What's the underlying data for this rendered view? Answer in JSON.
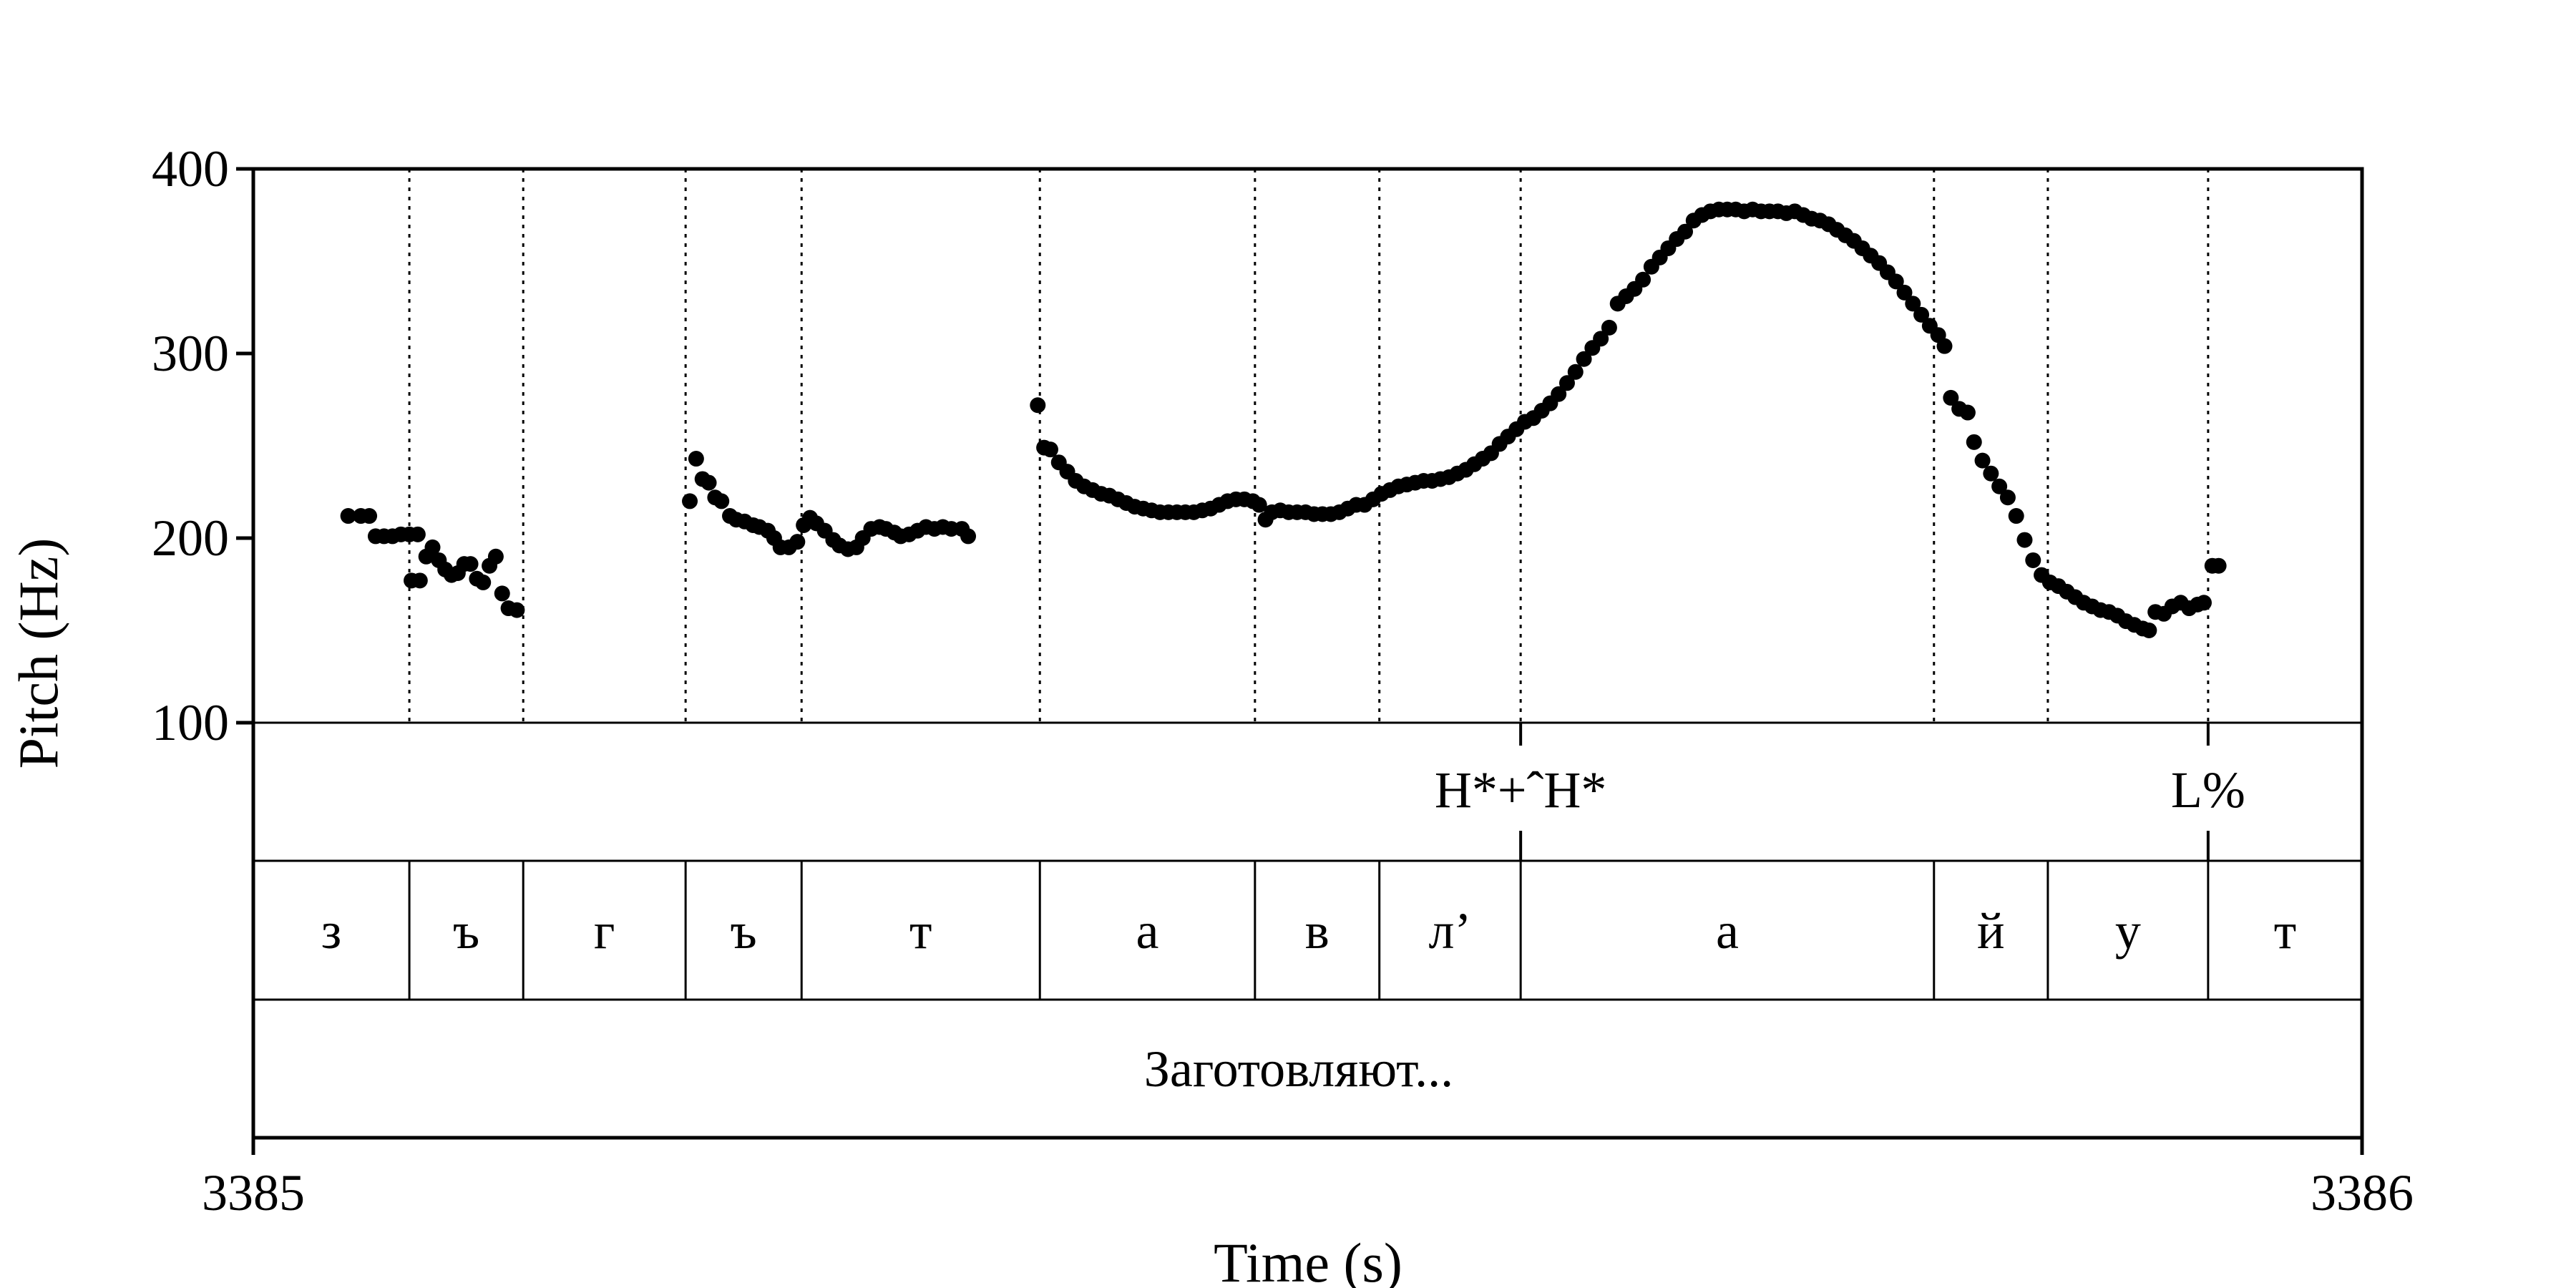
{
  "colors": {
    "points": "#000000",
    "lines": "#000000",
    "background": "#ffffff"
  },
  "chart_data": {
    "type": "scatter",
    "title": "",
    "xlabel": "Time (s)",
    "ylabel": "Pitch (Hz)",
    "xlim": [
      3385,
      3386
    ],
    "ylim": [
      100,
      400
    ],
    "x_tick_labels": [
      "3385",
      "3386"
    ],
    "y_tick_labels": [
      "100",
      "200",
      "300",
      "400"
    ],
    "grid": false,
    "legend": "none",
    "segment_boundaries": [
      3385.074,
      3385.128,
      3385.205,
      3385.26,
      3385.373,
      3385.475,
      3385.534,
      3385.601,
      3385.797,
      3385.851,
      3385.927
    ],
    "tones": [
      {
        "time": 3385.601,
        "label": "H*+ˆH*"
      },
      {
        "time": 3385.927,
        "label": "L%"
      }
    ],
    "segments": [
      "з",
      "ъ",
      "г",
      "ъ",
      "т",
      "а",
      "в",
      "л’",
      "а",
      "й",
      "у",
      "т"
    ],
    "word": "Заготовляют...",
    "pitch_series": [
      [
        3385.045,
        212
      ],
      [
        3385.051,
        212
      ],
      [
        3385.055,
        212
      ],
      [
        3385.058,
        201
      ],
      [
        3385.062,
        201
      ],
      [
        3385.066,
        201
      ],
      [
        3385.07,
        202
      ],
      [
        3385.074,
        202
      ],
      [
        3385.078,
        202
      ],
      [
        3385.075,
        177
      ],
      [
        3385.079,
        177
      ],
      [
        3385.082,
        190
      ],
      [
        3385.085,
        195
      ],
      [
        3385.088,
        188
      ],
      [
        3385.091,
        183
      ],
      [
        3385.094,
        180
      ],
      [
        3385.097,
        181
      ],
      [
        3385.1,
        186
      ],
      [
        3385.103,
        186
      ],
      [
        3385.106,
        178
      ],
      [
        3385.109,
        176
      ],
      [
        3385.112,
        185
      ],
      [
        3385.115,
        190
      ],
      [
        3385.118,
        170
      ],
      [
        3385.121,
        162
      ],
      [
        3385.125,
        161
      ],
      [
        3385.207,
        220
      ],
      [
        3385.21,
        243
      ],
      [
        3385.213,
        232
      ],
      [
        3385.216,
        230
      ],
      [
        3385.219,
        222
      ],
      [
        3385.222,
        220
      ],
      [
        3385.226,
        212
      ],
      [
        3385.229,
        210
      ],
      [
        3385.233,
        209
      ],
      [
        3385.237,
        207
      ],
      [
        3385.24,
        206
      ],
      [
        3385.244,
        204
      ],
      [
        3385.247,
        200
      ],
      [
        3385.25,
        195
      ],
      [
        3385.254,
        195
      ],
      [
        3385.258,
        198
      ],
      [
        3385.261,
        207
      ],
      [
        3385.264,
        211
      ],
      [
        3385.267,
        208
      ],
      [
        3385.271,
        204
      ],
      [
        3385.275,
        199
      ],
      [
        3385.278,
        196
      ],
      [
        3385.282,
        194
      ],
      [
        3385.286,
        195
      ],
      [
        3385.289,
        200
      ],
      [
        3385.293,
        205
      ],
      [
        3385.297,
        206
      ],
      [
        3385.3,
        205
      ],
      [
        3385.304,
        203
      ],
      [
        3385.307,
        201
      ],
      [
        3385.311,
        202
      ],
      [
        3385.315,
        204
      ],
      [
        3385.319,
        206
      ],
      [
        3385.323,
        205
      ],
      [
        3385.327,
        206
      ],
      [
        3385.331,
        205
      ],
      [
        3385.336,
        205
      ],
      [
        3385.339,
        201
      ],
      [
        3385.372,
        272
      ],
      [
        3385.375,
        249
      ],
      [
        3385.378,
        248
      ],
      [
        3385.382,
        241
      ],
      [
        3385.386,
        236
      ],
      [
        3385.39,
        231
      ],
      [
        3385.394,
        228
      ],
      [
        3385.398,
        226
      ],
      [
        3385.402,
        224
      ],
      [
        3385.406,
        223
      ],
      [
        3385.41,
        221
      ],
      [
        3385.414,
        219
      ],
      [
        3385.418,
        217
      ],
      [
        3385.422,
        216
      ],
      [
        3385.426,
        215
      ],
      [
        3385.43,
        214
      ],
      [
        3385.434,
        214
      ],
      [
        3385.438,
        214
      ],
      [
        3385.442,
        214
      ],
      [
        3385.446,
        214
      ],
      [
        3385.45,
        215
      ],
      [
        3385.454,
        216
      ],
      [
        3385.458,
        218
      ],
      [
        3385.462,
        220
      ],
      [
        3385.466,
        221
      ],
      [
        3385.47,
        221
      ],
      [
        3385.474,
        220
      ],
      [
        3385.477,
        218
      ],
      [
        3385.48,
        210
      ],
      [
        3385.483,
        214
      ],
      [
        3385.487,
        215
      ],
      [
        3385.491,
        214
      ],
      [
        3385.495,
        214
      ],
      [
        3385.499,
        214
      ],
      [
        3385.503,
        213
      ],
      [
        3385.507,
        213
      ],
      [
        3385.511,
        213
      ],
      [
        3385.515,
        214
      ],
      [
        3385.519,
        216
      ],
      [
        3385.523,
        218
      ],
      [
        3385.527,
        218
      ],
      [
        3385.531,
        221
      ],
      [
        3385.535,
        224
      ],
      [
        3385.539,
        226
      ],
      [
        3385.543,
        228
      ],
      [
        3385.547,
        229
      ],
      [
        3385.551,
        230
      ],
      [
        3385.555,
        231
      ],
      [
        3385.559,
        231
      ],
      [
        3385.563,
        232
      ],
      [
        3385.567,
        233
      ],
      [
        3385.571,
        235
      ],
      [
        3385.575,
        237
      ],
      [
        3385.579,
        240
      ],
      [
        3385.583,
        243
      ],
      [
        3385.587,
        246
      ],
      [
        3385.591,
        251
      ],
      [
        3385.595,
        255
      ],
      [
        3385.599,
        259
      ],
      [
        3385.603,
        263
      ],
      [
        3385.607,
        265
      ],
      [
        3385.611,
        269
      ],
      [
        3385.615,
        273
      ],
      [
        3385.619,
        278
      ],
      [
        3385.623,
        284
      ],
      [
        3385.627,
        290
      ],
      [
        3385.631,
        297
      ],
      [
        3385.635,
        303
      ],
      [
        3385.639,
        308
      ],
      [
        3385.643,
        314
      ],
      [
        3385.647,
        327
      ],
      [
        3385.651,
        331
      ],
      [
        3385.655,
        335
      ],
      [
        3385.659,
        340
      ],
      [
        3385.663,
        347
      ],
      [
        3385.667,
        352
      ],
      [
        3385.671,
        357
      ],
      [
        3385.675,
        362
      ],
      [
        3385.679,
        366
      ],
      [
        3385.683,
        372
      ],
      [
        3385.687,
        375
      ],
      [
        3385.691,
        377
      ],
      [
        3385.695,
        378
      ],
      [
        3385.699,
        378
      ],
      [
        3385.703,
        378
      ],
      [
        3385.707,
        377
      ],
      [
        3385.711,
        378
      ],
      [
        3385.715,
        377
      ],
      [
        3385.719,
        377
      ],
      [
        3385.723,
        377
      ],
      [
        3385.727,
        376
      ],
      [
        3385.731,
        377
      ],
      [
        3385.735,
        375
      ],
      [
        3385.739,
        373
      ],
      [
        3385.743,
        372
      ],
      [
        3385.747,
        370
      ],
      [
        3385.751,
        367
      ],
      [
        3385.755,
        364
      ],
      [
        3385.759,
        361
      ],
      [
        3385.763,
        357
      ],
      [
        3385.767,
        353
      ],
      [
        3385.771,
        349
      ],
      [
        3385.775,
        344
      ],
      [
        3385.779,
        339
      ],
      [
        3385.783,
        333
      ],
      [
        3385.787,
        327
      ],
      [
        3385.791,
        321
      ],
      [
        3385.795,
        315
      ],
      [
        3385.799,
        310
      ],
      [
        3385.802,
        304
      ],
      [
        3385.805,
        276
      ],
      [
        3385.809,
        270
      ],
      [
        3385.813,
        268
      ],
      [
        3385.816,
        252
      ],
      [
        3385.82,
        242
      ],
      [
        3385.824,
        235
      ],
      [
        3385.828,
        228
      ],
      [
        3385.832,
        222
      ],
      [
        3385.836,
        212
      ],
      [
        3385.84,
        199
      ],
      [
        3385.844,
        188
      ],
      [
        3385.848,
        180
      ],
      [
        3385.852,
        176
      ],
      [
        3385.856,
        174
      ],
      [
        3385.86,
        171
      ],
      [
        3385.864,
        168
      ],
      [
        3385.868,
        165
      ],
      [
        3385.872,
        163
      ],
      [
        3385.876,
        161
      ],
      [
        3385.88,
        160
      ],
      [
        3385.884,
        158
      ],
      [
        3385.888,
        155
      ],
      [
        3385.892,
        153
      ],
      [
        3385.896,
        151
      ],
      [
        3385.899,
        150
      ],
      [
        3385.902,
        160
      ],
      [
        3385.906,
        159
      ],
      [
        3385.91,
        163
      ],
      [
        3385.914,
        165
      ],
      [
        3385.918,
        162
      ],
      [
        3385.922,
        164
      ],
      [
        3385.925,
        165
      ],
      [
        3385.929,
        185
      ],
      [
        3385.932,
        185
      ]
    ]
  }
}
